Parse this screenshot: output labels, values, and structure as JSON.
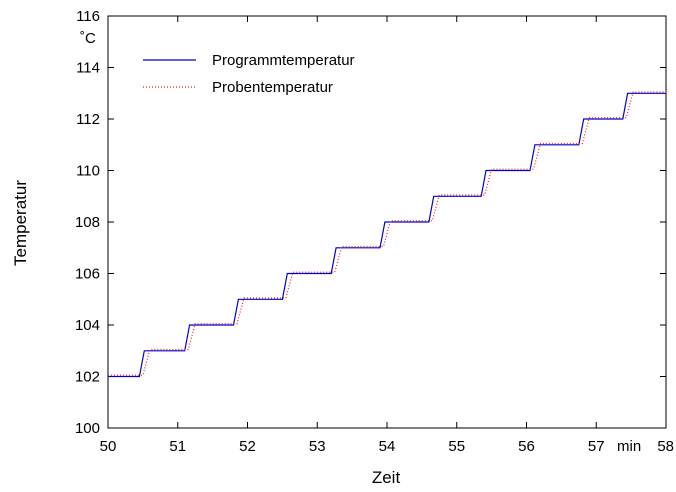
{
  "chart_data": {
    "type": "line",
    "xlabel": "Zeit",
    "ylabel": "Temperatur",
    "x_unit": "min",
    "y_unit": "˚C",
    "xlim": [
      50,
      58
    ],
    "ylim": [
      100,
      116
    ],
    "x_ticks": [
      50,
      51,
      52,
      53,
      54,
      55,
      56,
      57,
      58
    ],
    "y_ticks": [
      100,
      102,
      104,
      106,
      108,
      110,
      112,
      114,
      116
    ],
    "grid": false,
    "legend_position": "top-left",
    "series": [
      {
        "name": "Programmtemperatur",
        "color": "#0000cc",
        "style": "solid",
        "points": [
          [
            50.0,
            102
          ],
          [
            50.45,
            102
          ],
          [
            50.52,
            103
          ],
          [
            51.1,
            103
          ],
          [
            51.17,
            104
          ],
          [
            51.8,
            104
          ],
          [
            51.87,
            105
          ],
          [
            52.5,
            105
          ],
          [
            52.57,
            106
          ],
          [
            53.2,
            106
          ],
          [
            53.27,
            107
          ],
          [
            53.9,
            107
          ],
          [
            53.97,
            108
          ],
          [
            54.6,
            108
          ],
          [
            54.67,
            109
          ],
          [
            55.35,
            109
          ],
          [
            55.42,
            110
          ],
          [
            56.05,
            110
          ],
          [
            56.12,
            111
          ],
          [
            56.75,
            111
          ],
          [
            56.82,
            112
          ],
          [
            57.38,
            112
          ],
          [
            57.45,
            113
          ],
          [
            58.0,
            113
          ]
        ]
      },
      {
        "name": "Probentemperatur",
        "color": "#dd2222",
        "style": "dotted",
        "points": [
          [
            50.0,
            102.05
          ],
          [
            50.5,
            102.05
          ],
          [
            50.6,
            103.05
          ],
          [
            51.15,
            103.05
          ],
          [
            51.25,
            104.05
          ],
          [
            51.85,
            104.05
          ],
          [
            51.95,
            105.05
          ],
          [
            52.55,
            105.05
          ],
          [
            52.65,
            106.05
          ],
          [
            53.25,
            106.05
          ],
          [
            53.35,
            107.05
          ],
          [
            53.95,
            107.05
          ],
          [
            54.05,
            108.05
          ],
          [
            54.65,
            108.05
          ],
          [
            54.75,
            109.05
          ],
          [
            55.4,
            109.05
          ],
          [
            55.5,
            110.05
          ],
          [
            56.1,
            110.05
          ],
          [
            56.2,
            111.05
          ],
          [
            56.8,
            111.05
          ],
          [
            56.9,
            112.05
          ],
          [
            57.43,
            112.05
          ],
          [
            57.53,
            113.05
          ],
          [
            58.0,
            113.05
          ]
        ]
      }
    ]
  }
}
